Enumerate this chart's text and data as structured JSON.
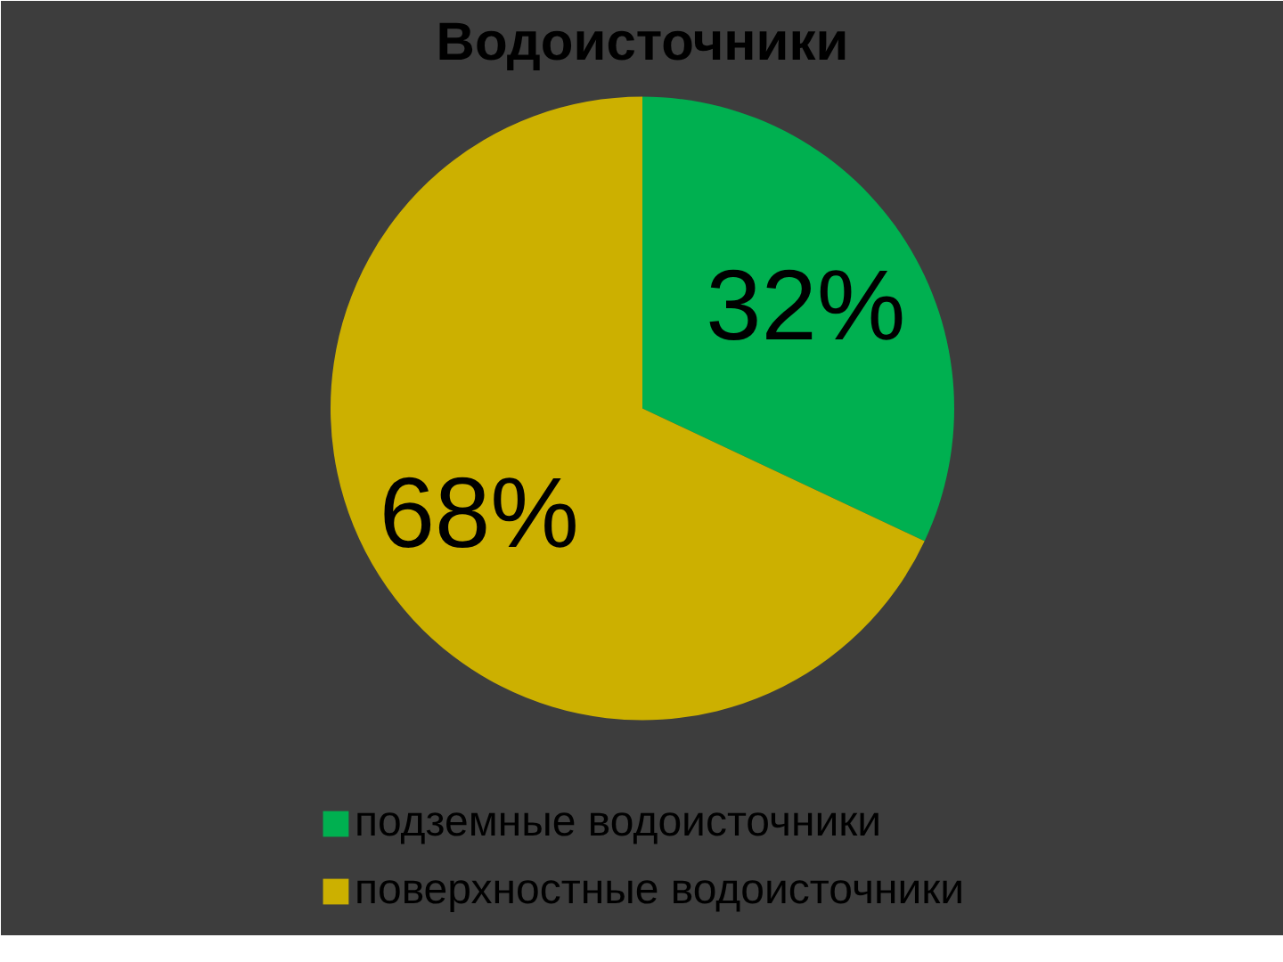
{
  "chart_data": {
    "type": "pie",
    "title": "Водоисточники",
    "categories": [
      "подземные водоисточники",
      "поверхностные водоисточники"
    ],
    "values": [
      32,
      68
    ],
    "colors": [
      "#00b050",
      "#ccb000"
    ],
    "value_labels": [
      "32%",
      "68%"
    ],
    "legend": "bottom"
  }
}
